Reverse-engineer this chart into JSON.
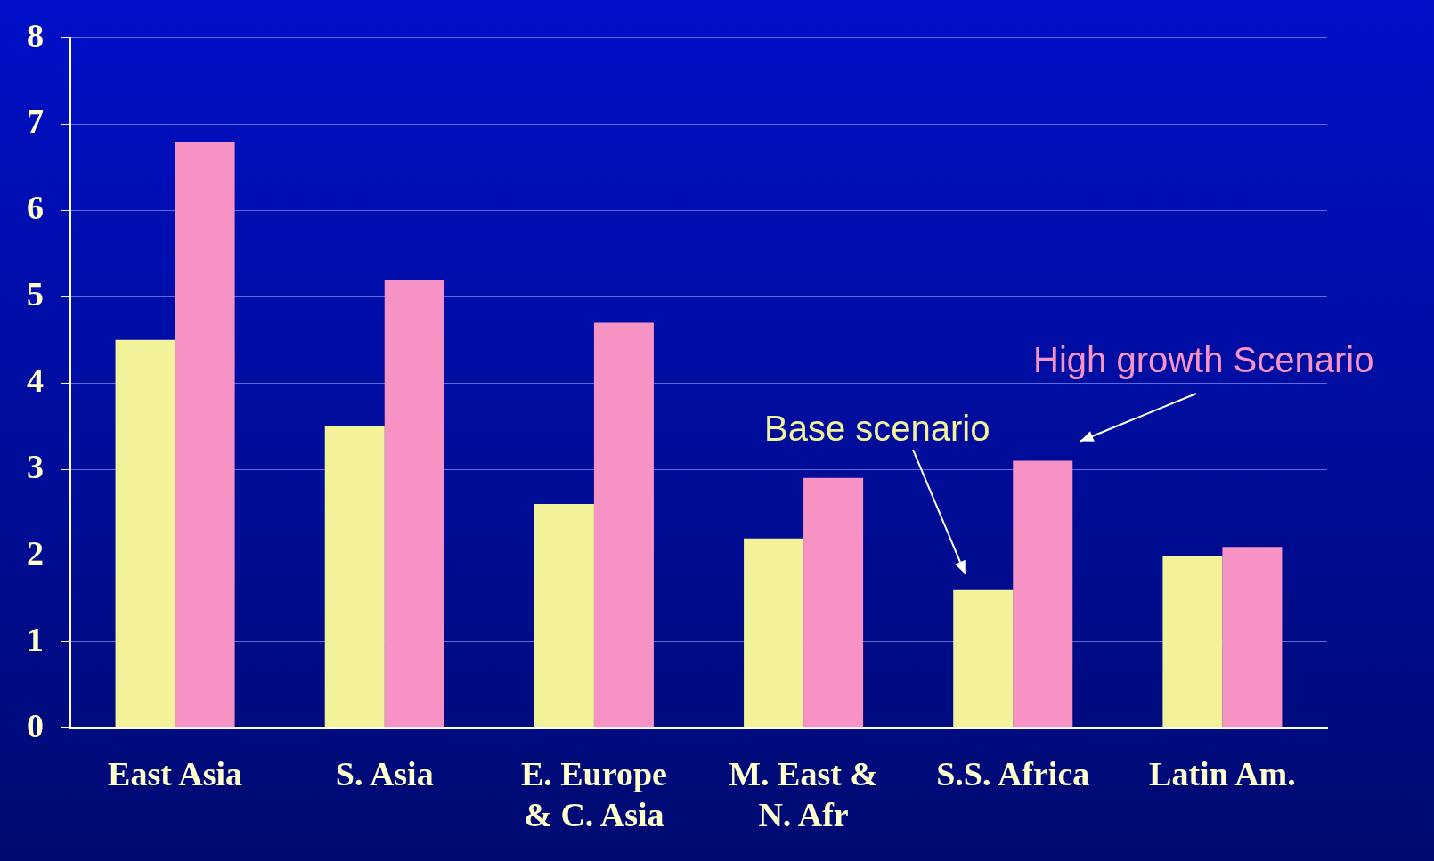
{
  "chart_data": {
    "type": "bar",
    "categories": [
      "East Asia",
      "S. Asia",
      "E. Europe\n& C. Asia",
      "M. East &\nN. Afr",
      "S.S. Africa",
      "Latin Am."
    ],
    "series": [
      {
        "name": "Base scenario",
        "color": "#f2f29a",
        "values": [
          4.5,
          3.5,
          2.6,
          2.2,
          1.6,
          2.0
        ]
      },
      {
        "name": "High growth Scenario",
        "color": "#f792c4",
        "values": [
          6.8,
          5.2,
          4.7,
          2.9,
          3.1,
          2.1
        ]
      }
    ],
    "ylim": [
      0,
      8
    ],
    "yticks": [
      0,
      1,
      2,
      3,
      4,
      5,
      6,
      7,
      8
    ],
    "grid": "y",
    "legend": false
  }
}
